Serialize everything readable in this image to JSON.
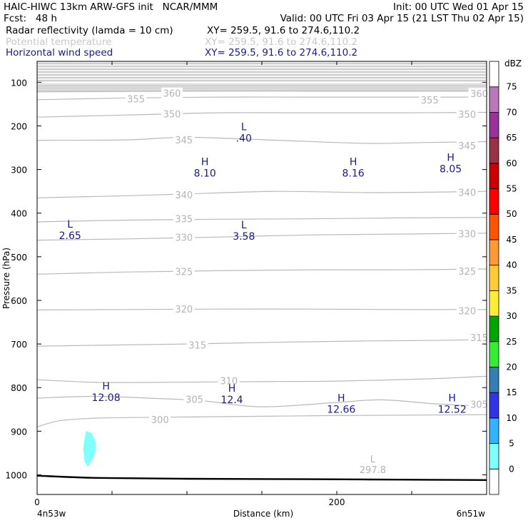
{
  "header": {
    "title": "HAIC-HIWC 13km ARW-GFS init   NCAR/MMM",
    "init": "Init: 00 UTC Wed 01 Apr 15",
    "fcst": "Fcst:   48 h",
    "valid": "Valid: 00 UTC Fri 03 Apr 15 (21 LST Thu 02 Apr 15)",
    "fields": [
      {
        "name": "Radar reflectivity (lamda = 10 cm)",
        "xy": "XY= 259.5, 91.6 to 274.6,110.2",
        "color": "#000000"
      },
      {
        "name": "Potential temperature",
        "xy": "XY= 259.5, 91.6 to 274.6,110.2",
        "color": "#c8c8c8"
      },
      {
        "name": "Horizontal wind speed",
        "xy": "XY= 259.5, 91.6 to 274.6,110.2",
        "color": "#1a1a8c"
      }
    ]
  },
  "chart_data": {
    "type": "contour",
    "xlabel": "Distance (km)",
    "ylabel": "Pressure (hPa)",
    "x_ticks": [
      0,
      200
    ],
    "x_range_km": [
      0,
      300
    ],
    "x_endpoints": [
      "4n53w",
      "6n51w"
    ],
    "y_ticks": [
      100,
      200,
      300,
      400,
      500,
      600,
      700,
      800,
      900,
      1000
    ],
    "y_range_hpa": [
      52,
      1045
    ],
    "theta_contours": [
      {
        "label": "300",
        "points": [
          [
            0,
            890
          ],
          [
            15,
            876
          ],
          [
            40,
            870
          ],
          [
            80,
            868
          ],
          [
            140,
            866
          ],
          [
            200,
            864
          ],
          [
            260,
            863
          ],
          [
            300,
            862
          ]
        ],
        "labels_at": [
          [
            82,
            873
          ]
        ]
      },
      {
        "label": "305",
        "points": [
          [
            0,
            824
          ],
          [
            40,
            820
          ],
          [
            80,
            825
          ],
          [
            110,
            830
          ],
          [
            150,
            844
          ],
          [
            200,
            834
          ],
          [
            230,
            828
          ],
          [
            265,
            837
          ],
          [
            300,
            843
          ]
        ],
        "labels_at": [
          [
            105,
            827
          ],
          [
            295,
            838
          ]
        ]
      },
      {
        "label": "310",
        "points": [
          [
            0,
            782
          ],
          [
            40,
            788
          ],
          [
            80,
            788
          ],
          [
            120,
            787
          ],
          [
            160,
            786
          ],
          [
            200,
            785
          ],
          [
            260,
            780
          ],
          [
            300,
            774
          ]
        ],
        "labels_at": [
          [
            128,
            784
          ]
        ]
      },
      {
        "label": "315",
        "points": [
          [
            0,
            705
          ],
          [
            40,
            703
          ],
          [
            100,
            700
          ],
          [
            160,
            696
          ],
          [
            220,
            693
          ],
          [
            260,
            692
          ],
          [
            300,
            690
          ]
        ],
        "labels_at": [
          [
            107,
            702
          ],
          [
            295,
            685
          ]
        ]
      },
      {
        "label": "320",
        "points": [
          [
            0,
            622
          ],
          [
            60,
            621
          ],
          [
            120,
            620
          ],
          [
            180,
            620
          ],
          [
            240,
            621
          ],
          [
            300,
            621
          ]
        ],
        "labels_at": [
          [
            98,
            620
          ],
          [
            287,
            624
          ]
        ]
      },
      {
        "label": "325",
        "points": [
          [
            0,
            540
          ],
          [
            60,
            535
          ],
          [
            120,
            532
          ],
          [
            180,
            530
          ],
          [
            240,
            530
          ],
          [
            300,
            528
          ]
        ],
        "labels_at": [
          [
            98,
            534
          ],
          [
            287,
            533
          ]
        ]
      },
      {
        "label": "330",
        "points": [
          [
            0,
            462
          ],
          [
            60,
            459
          ],
          [
            120,
            455
          ],
          [
            180,
            450
          ],
          [
            240,
            448
          ],
          [
            300,
            446
          ]
        ],
        "labels_at": [
          [
            98,
            455
          ],
          [
            287,
            447
          ]
        ]
      },
      {
        "label": "335",
        "points": [
          [
            0,
            420
          ],
          [
            60,
            416
          ],
          [
            120,
            414
          ],
          [
            180,
            413
          ],
          [
            240,
            411
          ],
          [
            300,
            410
          ]
        ],
        "labels_at": [
          [
            98,
            413
          ]
        ]
      },
      {
        "label": "340",
        "points": [
          [
            0,
            365
          ],
          [
            60,
            360
          ],
          [
            100,
            356
          ],
          [
            160,
            350
          ],
          [
            220,
            353
          ],
          [
            260,
            352
          ],
          [
            300,
            350
          ]
        ],
        "labels_at": [
          [
            98,
            358
          ],
          [
            287,
            352
          ]
        ]
      },
      {
        "label": "345",
        "points": [
          [
            0,
            233
          ],
          [
            60,
            232
          ],
          [
            100,
            226
          ],
          [
            160,
            233
          ],
          [
            220,
            240
          ],
          [
            260,
            238
          ],
          [
            300,
            236
          ]
        ],
        "labels_at": [
          [
            98,
            232
          ],
          [
            287,
            245
          ]
        ]
      },
      {
        "label": "350",
        "points": [
          [
            0,
            180
          ],
          [
            60,
            175
          ],
          [
            120,
            170
          ],
          [
            180,
            170
          ],
          [
            240,
            170
          ],
          [
            300,
            169
          ]
        ],
        "labels_at": [
          [
            90,
            172
          ],
          [
            287,
            173
          ]
        ]
      },
      {
        "label": "355",
        "points": [
          [
            0,
            140
          ],
          [
            60,
            136
          ],
          [
            120,
            134
          ],
          [
            180,
            134
          ],
          [
            240,
            134
          ],
          [
            300,
            134
          ]
        ],
        "labels_at": [
          [
            66,
            138
          ],
          [
            262,
            140
          ]
        ]
      },
      {
        "label": "360",
        "points": [
          [
            0,
            122
          ],
          [
            60,
            121
          ],
          [
            120,
            120
          ],
          [
            180,
            120
          ],
          [
            240,
            120
          ],
          [
            300,
            120
          ]
        ],
        "labels_at": [
          [
            90,
            125
          ],
          [
            295,
            126
          ]
        ]
      }
    ],
    "theta_minimum": {
      "label": "L",
      "value": "297.8",
      "x_km": 224,
      "p_hpa": 978
    },
    "wind_extrema": [
      {
        "type": "L",
        "value": ".40",
        "x_km": 138,
        "p_hpa": 218
      },
      {
        "type": "H",
        "value": "8.10",
        "x_km": 112,
        "p_hpa": 298
      },
      {
        "type": "H",
        "value": "8.16",
        "x_km": 211,
        "p_hpa": 298
      },
      {
        "type": "H",
        "value": "8.05",
        "x_km": 276,
        "p_hpa": 288
      },
      {
        "type": "L",
        "value": "2.65",
        "x_km": 22,
        "p_hpa": 441
      },
      {
        "type": "L",
        "value": "3.58",
        "x_km": 138,
        "p_hpa": 443
      },
      {
        "type": "H",
        "value": "12.08",
        "x_km": 46,
        "p_hpa": 813
      },
      {
        "type": "H",
        "value": "12.4",
        "x_km": 130,
        "p_hpa": 818
      },
      {
        "type": "H",
        "value": "12.66",
        "x_km": 203,
        "p_hpa": 840
      },
      {
        "type": "H",
        "value": "12.52",
        "x_km": 277,
        "p_hpa": 840
      }
    ],
    "reflectivity_cells": [
      {
        "dbz": 5,
        "color": "#80ffff",
        "outline": [
          [
            33,
            900
          ],
          [
            36,
            905
          ],
          [
            39,
            925
          ],
          [
            39,
            945
          ],
          [
            36,
            968
          ],
          [
            34,
            980
          ],
          [
            32,
            970
          ],
          [
            31,
            940
          ],
          [
            32,
            915
          ]
        ]
      }
    ],
    "terrain_hpa": [
      [
        0,
        1002
      ],
      [
        40,
        1007
      ],
      [
        100,
        1009
      ],
      [
        180,
        1010
      ],
      [
        240,
        1011
      ],
      [
        300,
        1012
      ]
    ],
    "colorbar": {
      "unit": "dBZ",
      "levels": [
        "0",
        "5",
        "10",
        "15",
        "20",
        "25",
        "30",
        "35",
        "40",
        "45",
        "50",
        "55",
        "60",
        "65",
        "70",
        "75"
      ],
      "colors": [
        "#ffffff",
        "#80ffff",
        "#33b3ff",
        "#3333e6",
        "#337fb3",
        "#33ee33",
        "#00a600",
        "#ffee33",
        "#ffcc33",
        "#ff9933",
        "#ff5500",
        "#ff0000",
        "#cc0000",
        "#993344",
        "#993399",
        "#bb77bb",
        "#ffffff"
      ]
    }
  }
}
